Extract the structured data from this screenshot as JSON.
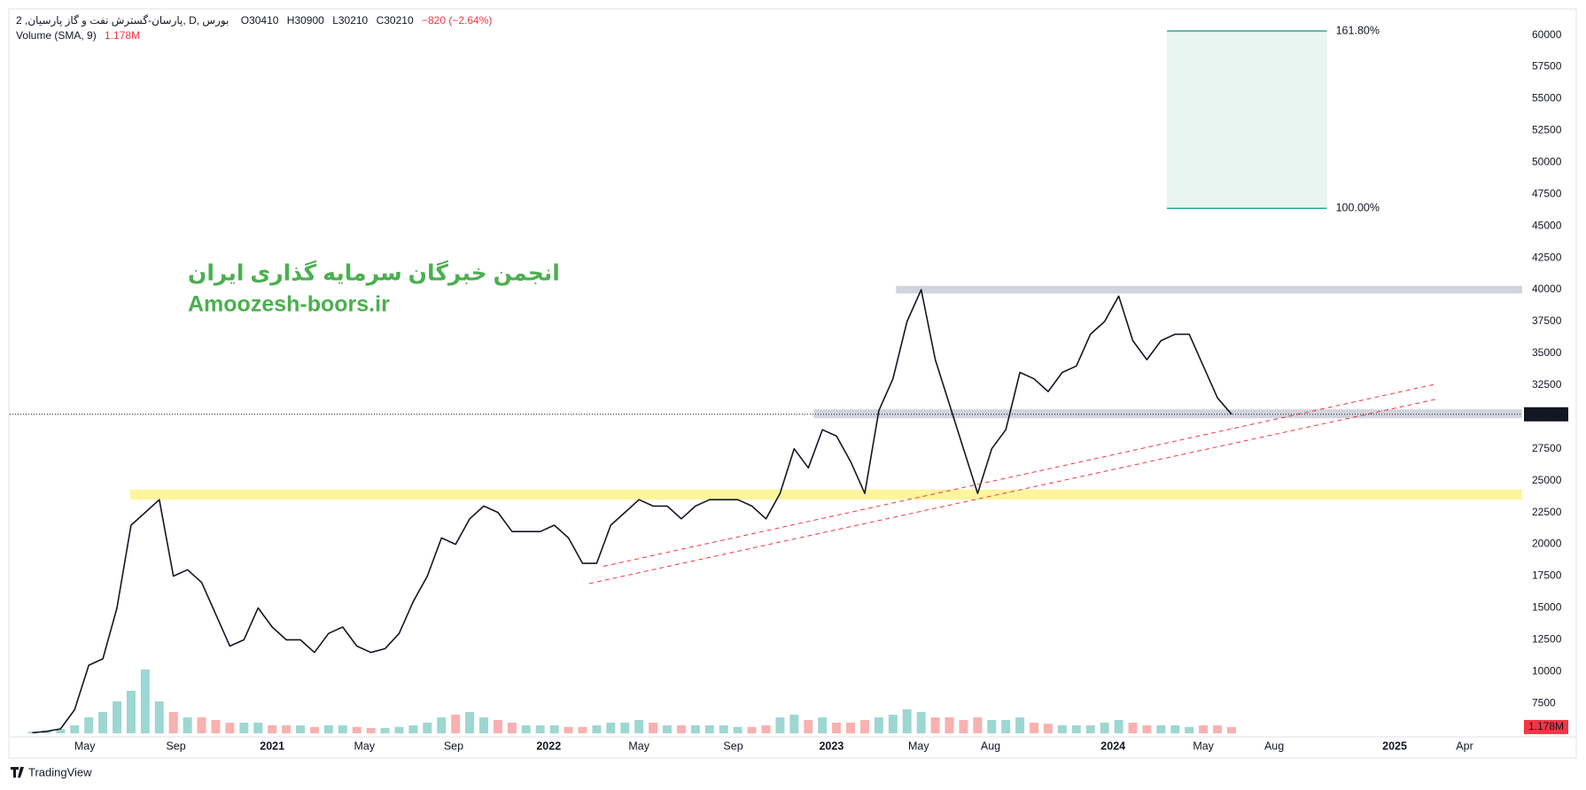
{
  "chart_data": {
    "type": "line",
    "symbol": "پارسان-گسترش نفت و گاز پارسیان, 2, D, بورس",
    "ohlc": [
      "O30410",
      "H30900",
      "L30210",
      "C30210",
      "−820 (−2.64%)"
    ],
    "volume_label": "Volume (SMA, 9)",
    "last_volume_label": "1.178M",
    "watermark": [
      "انجمن خبرگان سرمایه گذاری ایران",
      "Amoozesh-boors.ir"
    ],
    "brand": "TradingView",
    "x": [
      2020.15,
      2020.2,
      2020.25,
      2020.3,
      2020.35,
      2020.4,
      2020.45,
      2020.5,
      2020.55,
      2020.6,
      2020.65,
      2020.7,
      2020.75,
      2020.8,
      2020.85,
      2020.9,
      2020.95,
      2021.0,
      2021.05,
      2021.1,
      2021.15,
      2021.2,
      2021.25,
      2021.3,
      2021.35,
      2021.4,
      2021.45,
      2021.5,
      2021.55,
      2021.6,
      2021.65,
      2021.7,
      2021.75,
      2021.8,
      2021.85,
      2021.9,
      2021.95,
      2022.0,
      2022.05,
      2022.1,
      2022.15,
      2022.2,
      2022.25,
      2022.3,
      2022.35,
      2022.4,
      2022.45,
      2022.5,
      2022.55,
      2022.6,
      2022.65,
      2022.7,
      2022.75,
      2022.8,
      2022.85,
      2022.9,
      2022.95,
      2023.0,
      2023.05,
      2023.1,
      2023.15,
      2023.2,
      2023.25,
      2023.3,
      2023.35,
      2023.4,
      2023.45,
      2023.5,
      2023.55,
      2023.6,
      2023.65,
      2023.7,
      2023.75,
      2023.8,
      2023.85,
      2023.9,
      2023.95,
      2024.0,
      2024.05,
      2024.1,
      2024.15,
      2024.2,
      2024.25,
      2024.3,
      2024.35,
      2024.4
    ],
    "series": [
      {
        "color": "#131722",
        "values": [
          5200,
          5300,
          5500,
          7000,
          10500,
          11000,
          15000,
          21500,
          22500,
          23500,
          17500,
          18000,
          17000,
          14500,
          12000,
          12500,
          15000,
          13500,
          12500,
          12500,
          11500,
          13000,
          13500,
          12000,
          11500,
          11800,
          13000,
          15500,
          17500,
          20500,
          20000,
          22000,
          23000,
          22500,
          21000,
          21000,
          21000,
          21500,
          20500,
          18500,
          18500,
          21500,
          22500,
          23500,
          23000,
          23000,
          22000,
          23000,
          23500,
          23500,
          23500,
          23000,
          22000,
          24000,
          27500,
          26000,
          29000,
          28500,
          26500,
          24000,
          30500,
          33000,
          37500,
          40000,
          34500,
          31000,
          27500,
          24000,
          27500,
          29000,
          33500,
          33000,
          32000,
          33500,
          34000,
          36500,
          37500,
          39500,
          36000,
          34500,
          36000,
          36500,
          36500,
          34000,
          31500,
          30210
        ]
      },
      {
        "type": "bar",
        "axis": "y2",
        "up_color": "#26a69a",
        "down_color": "#ef5350",
        "values": [
          0.3,
          0.5,
          0.8,
          1.5,
          3,
          4,
          6,
          8,
          12,
          6,
          4,
          3,
          3,
          2.5,
          2,
          2,
          2,
          1.5,
          1.5,
          1.5,
          1.2,
          1.5,
          1.5,
          1.2,
          1,
          1,
          1.2,
          1.5,
          2,
          3,
          3.5,
          4,
          3,
          2.5,
          2,
          1.5,
          1.5,
          1.5,
          1.2,
          1.2,
          1.5,
          2,
          2,
          2.5,
          2,
          1.5,
          1.5,
          1.5,
          1.5,
          1.5,
          1.2,
          1.2,
          1.5,
          3,
          3.5,
          2.5,
          3,
          2,
          2,
          2.5,
          3,
          3.5,
          4.5,
          4,
          3,
          3,
          2.5,
          3,
          2.5,
          2.5,
          3,
          2,
          1.8,
          1.5,
          1.5,
          1.5,
          2,
          2.5,
          2,
          1.5,
          1.5,
          1.5,
          1.2,
          1.5,
          1.5,
          1.178
        ]
      }
    ],
    "xlim": [
      2020.07,
      2025.43
    ],
    "xticks": [
      {
        "value": 2020.336,
        "label": "May"
      },
      {
        "value": 2020.659,
        "label": "Sep"
      },
      {
        "value": 2021.0,
        "label": "2021"
      },
      {
        "value": 2021.327,
        "label": "May"
      },
      {
        "value": 2021.643,
        "label": "Sep"
      },
      {
        "value": 2021.98,
        "label": "2022"
      },
      {
        "value": 2022.3,
        "label": "May"
      },
      {
        "value": 2022.634,
        "label": "Sep"
      },
      {
        "value": 2022.982,
        "label": "2023"
      },
      {
        "value": 2023.291,
        "label": "May"
      },
      {
        "value": 2023.546,
        "label": "Aug"
      },
      {
        "value": 2023.98,
        "label": "2024"
      },
      {
        "value": 2024.3,
        "label": "May"
      },
      {
        "value": 2024.551,
        "label": "Aug"
      },
      {
        "value": 2024.978,
        "label": "2025"
      },
      {
        "value": 2025.226,
        "label": "Apr"
      }
    ],
    "ylim": [
      5150,
      61990
    ],
    "yticks": [
      7500,
      10000,
      12500,
      15000,
      17500,
      20000,
      22500,
      25000,
      27500,
      30000,
      32500,
      35000,
      37500,
      40000,
      42500,
      45000,
      47500,
      50000,
      52500,
      55000,
      57500,
      60000
    ],
    "y2lim": [
      0,
      25
    ],
    "grid": false,
    "last_price": 30210,
    "zones": [
      {
        "start": 2020.497,
        "low": 23500,
        "high": 24300,
        "color": "#fff59d"
      },
      {
        "start": 2023.211,
        "low": 39700,
        "high": 40300,
        "color": "#d1d4dc"
      },
      {
        "start": 2022.919,
        "low": 29900,
        "high": 30600,
        "color": "#d1d4dc"
      }
    ],
    "trend_lines": [
      {
        "x": [
          2022.174,
          2025.122
        ],
        "y": [
          18267,
          32575
        ],
        "color": "#f23645"
      },
      {
        "x": [
          2022.124,
          2025.122
        ],
        "y": [
          16916,
          31380
        ],
        "color": "#f23645"
      }
    ],
    "fib": {
      "x": [
        2024.171,
        2024.738
      ],
      "color": "#089981",
      "fill": "#e8f5f1",
      "levels": [
        {
          "value": 60320,
          "label": "161.80%"
        },
        {
          "value": 46390,
          "label": "100.00%"
        }
      ]
    }
  }
}
